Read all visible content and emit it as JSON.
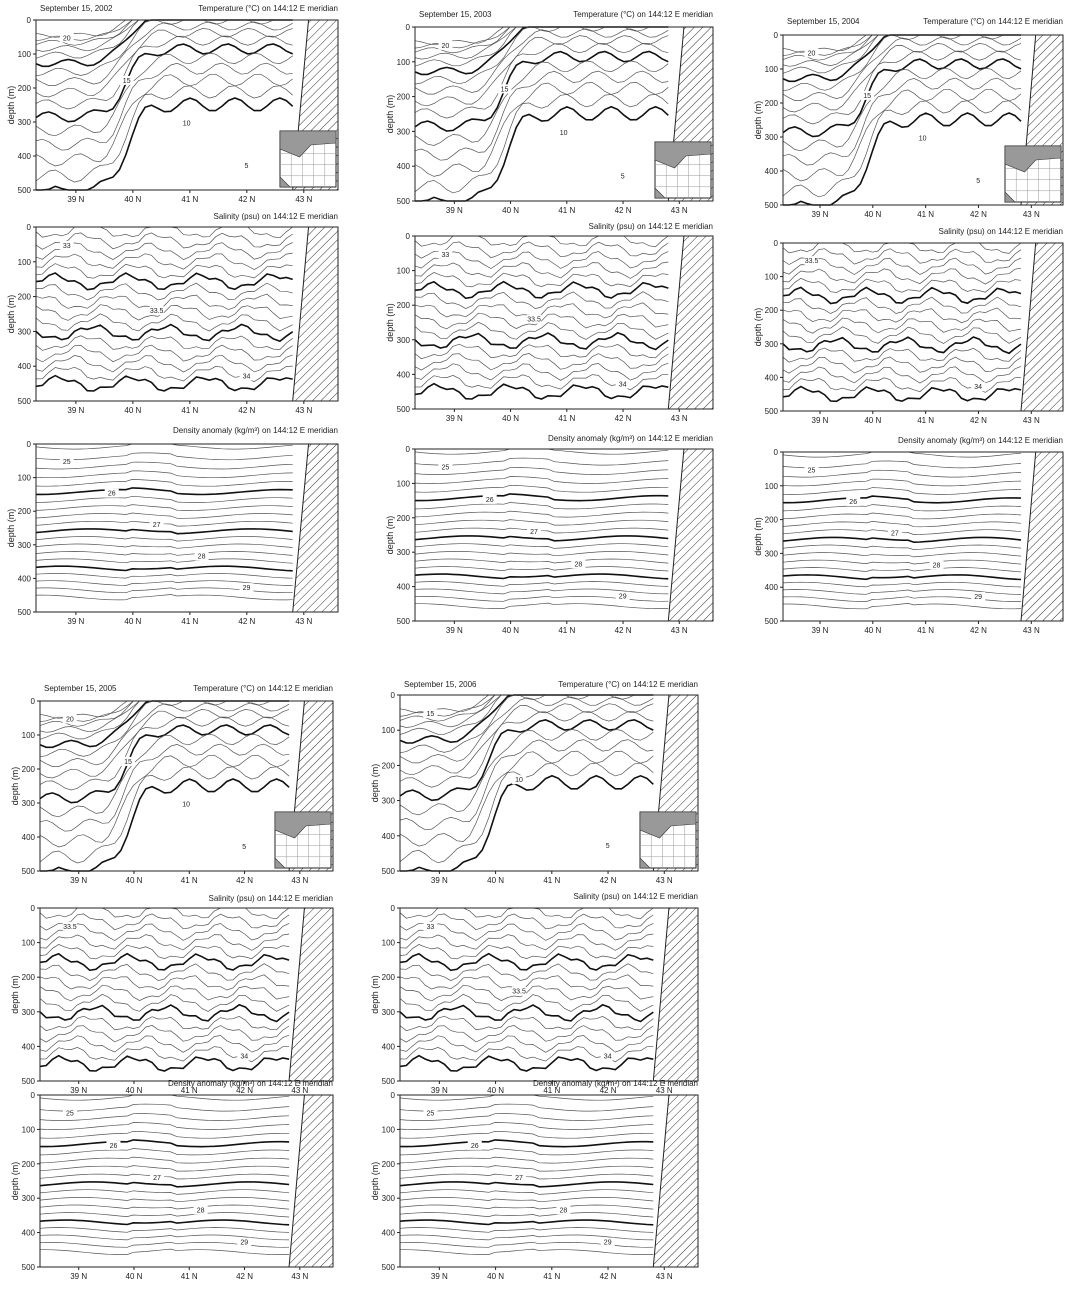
{
  "figure": {
    "panels": [
      {
        "date": "September 15, 2002",
        "temperature_title": "Temperature (°C) on 144:12 E meridian",
        "salinity_title": "Salinity (psu) on 144:12 E meridian",
        "density_title": "Density anomaly (kg/m³) on 144:12 E meridian"
      },
      {
        "date": "September 15, 2003",
        "temperature_title": "Temperature (°C) on 144:12 E meridian",
        "salinity_title": "Salinity (psu) on 144:12 E meridian",
        "density_title": "Density anomaly (kg/m³) on 144:12 E meridian"
      },
      {
        "date": "September 15, 2004",
        "temperature_title": "Temperature (°C) on 144:12 E meridian",
        "salinity_title": "Salinity (psu) on 144:12 E meridian",
        "density_title": "Density anomaly (kg/m³) on 144:12 E meridian"
      },
      {
        "date": "September 15, 2005",
        "temperature_title": "Temperature (°C) on 144:12 E meridian",
        "salinity_title": "Salinity (psu) on 144:12 E meridian",
        "density_title": "Density anomaly (kg/m³) on 144:12 E meridian"
      },
      {
        "date": "September 15, 2006",
        "temperature_title": "Temperature (°C) on 144:12 E meridian",
        "salinity_title": "Salinity (psu) on 144:12 E meridian",
        "density_title": "Density anomaly (kg/m³) on 144:12 E meridian"
      }
    ]
  },
  "chart_data": [
    {
      "type": "contour",
      "variable": "temperature",
      "date": "September 15, 2002",
      "title": "Temperature (°C) on 144:12 E meridian",
      "ylabel": "depth (m)",
      "xticks": [
        "39 N",
        "40 N",
        "41 N",
        "42 N",
        "43 N"
      ],
      "yticks": [
        "0",
        "100",
        "200",
        "300",
        "400",
        "500"
      ],
      "ylim": [
        0,
        500
      ],
      "contour_labels": [
        "20",
        "15",
        "10",
        "5"
      ],
      "inset_map": true,
      "land_hatched": true
    },
    {
      "type": "contour",
      "variable": "salinity",
      "date": "September 15, 2002",
      "title": "Salinity (psu) on 144:12 E meridian",
      "ylabel": "depth (m)",
      "xticks": [
        "39 N",
        "40 N",
        "41 N",
        "42 N",
        "43 N"
      ],
      "yticks": [
        "0",
        "100",
        "200",
        "300",
        "400",
        "500"
      ],
      "ylim": [
        0,
        500
      ],
      "contour_labels": [
        "33",
        "33.5",
        "34"
      ],
      "land_hatched": true
    },
    {
      "type": "contour",
      "variable": "density",
      "date": "September 15, 2002",
      "title": "Density anomaly (kg/m³) on 144:12 E meridian",
      "ylabel": "depth (m)",
      "xticks": [
        "39 N",
        "40 N",
        "41 N",
        "42 N",
        "43 N"
      ],
      "yticks": [
        "0",
        "100",
        "200",
        "300",
        "400",
        "500"
      ],
      "ylim": [
        0,
        500
      ],
      "contour_labels": [
        "25",
        "26",
        "27",
        "28",
        "29"
      ],
      "land_hatched": true
    },
    {
      "type": "contour",
      "variable": "temperature",
      "date": "September 15, 2003",
      "title": "Temperature (°C) on 144:12 E meridian",
      "ylabel": "depth (m)",
      "xticks": [
        "39 N",
        "40 N",
        "41 N",
        "42 N",
        "43 N"
      ],
      "yticks": [
        "0",
        "100",
        "200",
        "300",
        "400",
        "500"
      ],
      "ylim": [
        0,
        500
      ],
      "contour_labels": [
        "20",
        "15",
        "10",
        "5"
      ],
      "inset_map": true,
      "land_hatched": true
    },
    {
      "type": "contour",
      "variable": "salinity",
      "date": "September 15, 2003",
      "title": "Salinity (psu) on 144:12 E meridian",
      "ylabel": "depth (m)",
      "xticks": [
        "39 N",
        "40 N",
        "41 N",
        "42 N",
        "43 N"
      ],
      "yticks": [
        "0",
        "100",
        "200",
        "300",
        "400",
        "500"
      ],
      "ylim": [
        0,
        500
      ],
      "contour_labels": [
        "33",
        "33.5",
        "34"
      ],
      "land_hatched": true
    },
    {
      "type": "contour",
      "variable": "density",
      "date": "September 15, 2003",
      "title": "Density anomaly (kg/m³) on 144:12 E meridian",
      "ylabel": "depth (m)",
      "xticks": [
        "39 N",
        "40 N",
        "41 N",
        "42 N",
        "43 N"
      ],
      "yticks": [
        "0",
        "100",
        "200",
        "300",
        "400",
        "500"
      ],
      "ylim": [
        0,
        500
      ],
      "contour_labels": [
        "25",
        "26",
        "27",
        "28",
        "29"
      ],
      "land_hatched": true
    },
    {
      "type": "contour",
      "variable": "temperature",
      "date": "September 15, 2004",
      "title": "Temperature (°C) on 144:12 E meridian",
      "ylabel": "depth (m)",
      "xticks": [
        "39 N",
        "40 N",
        "41 N",
        "42 N",
        "43 N"
      ],
      "yticks": [
        "0",
        "100",
        "200",
        "300",
        "400",
        "500"
      ],
      "ylim": [
        0,
        500
      ],
      "contour_labels": [
        "20",
        "15",
        "10",
        "5"
      ],
      "inset_map": true,
      "land_hatched": true
    },
    {
      "type": "contour",
      "variable": "salinity",
      "date": "September 15, 2004",
      "title": "Salinity (psu) on 144:12 E meridian",
      "ylabel": "depth (m)",
      "xticks": [
        "39 N",
        "40 N",
        "41 N",
        "42 N",
        "43 N"
      ],
      "yticks": [
        "0",
        "100",
        "200",
        "300",
        "400",
        "500"
      ],
      "ylim": [
        0,
        500
      ],
      "contour_labels": [
        "33.5",
        "34"
      ],
      "land_hatched": true
    },
    {
      "type": "contour",
      "variable": "density",
      "date": "September 15, 2004",
      "title": "Density anomaly (kg/m³) on 144:12 E meridian",
      "ylabel": "depth (m)",
      "xticks": [
        "39 N",
        "40 N",
        "41 N",
        "42 N",
        "43 N"
      ],
      "yticks": [
        "0",
        "100",
        "200",
        "300",
        "400",
        "500"
      ],
      "ylim": [
        0,
        500
      ],
      "contour_labels": [
        "25",
        "26",
        "27",
        "28",
        "29"
      ],
      "land_hatched": true
    },
    {
      "type": "contour",
      "variable": "temperature",
      "date": "September 15, 2005",
      "title": "Temperature (°C) on 144:12 E meridian",
      "ylabel": "depth (m)",
      "xticks": [
        "39 N",
        "40 N",
        "41 N",
        "42 N",
        "43 N"
      ],
      "yticks": [
        "0",
        "100",
        "200",
        "300",
        "400",
        "500"
      ],
      "ylim": [
        0,
        500
      ],
      "contour_labels": [
        "20",
        "15",
        "10",
        "5"
      ],
      "inset_map": true,
      "land_hatched": true
    },
    {
      "type": "contour",
      "variable": "salinity",
      "date": "September 15, 2005",
      "title": "Salinity (psu) on 144:12 E meridian",
      "ylabel": "depth (m)",
      "xticks": [
        "39 N",
        "40 N",
        "41 N",
        "42 N",
        "43 N"
      ],
      "yticks": [
        "0",
        "100",
        "200",
        "300",
        "400",
        "500"
      ],
      "ylim": [
        0,
        500
      ],
      "contour_labels": [
        "33.5",
        "34"
      ],
      "land_hatched": true
    },
    {
      "type": "contour",
      "variable": "density",
      "date": "September 15, 2005",
      "title": "Density anomaly (kg/m³) on 144:12 E meridian",
      "ylabel": "depth (m)",
      "xticks": [
        "39 N",
        "40 N",
        "41 N",
        "42 N",
        "43 N"
      ],
      "yticks": [
        "0",
        "100",
        "200",
        "300",
        "400",
        "500"
      ],
      "ylim": [
        0,
        500
      ],
      "contour_labels": [
        "25",
        "26",
        "27",
        "28",
        "29"
      ],
      "land_hatched": true
    },
    {
      "type": "contour",
      "variable": "temperature",
      "date": "September 15, 2006",
      "title": "Temperature (°C) on 144:12 E meridian",
      "ylabel": "depth (m)",
      "xticks": [
        "39 N",
        "40 N",
        "41 N",
        "42 N",
        "43 N"
      ],
      "yticks": [
        "0",
        "100",
        "200",
        "300",
        "400",
        "500"
      ],
      "ylim": [
        0,
        500
      ],
      "contour_labels": [
        "15",
        "10",
        "5"
      ],
      "inset_map": true,
      "land_hatched": true
    },
    {
      "type": "contour",
      "variable": "salinity",
      "date": "September 15, 2006",
      "title": "Salinity (psu) on 144:12 E meridian",
      "ylabel": "depth (m)",
      "xticks": [
        "39 N",
        "40 N",
        "41 N",
        "42 N",
        "43 N"
      ],
      "yticks": [
        "0",
        "100",
        "200",
        "300",
        "400",
        "500"
      ],
      "ylim": [
        0,
        500
      ],
      "contour_labels": [
        "33",
        "33.5",
        "34"
      ],
      "land_hatched": true
    },
    {
      "type": "contour",
      "variable": "density",
      "date": "September 15, 2006",
      "title": "Density anomaly (kg/m³) on 144:12 E meridian",
      "ylabel": "depth (m)",
      "xticks": [
        "39 N",
        "40 N",
        "41 N",
        "42 N",
        "43 N"
      ],
      "yticks": [
        "0",
        "100",
        "200",
        "300",
        "400",
        "500"
      ],
      "ylim": [
        0,
        500
      ],
      "contour_labels": [
        "25",
        "26",
        "27",
        "28",
        "29"
      ],
      "land_hatched": true
    }
  ]
}
